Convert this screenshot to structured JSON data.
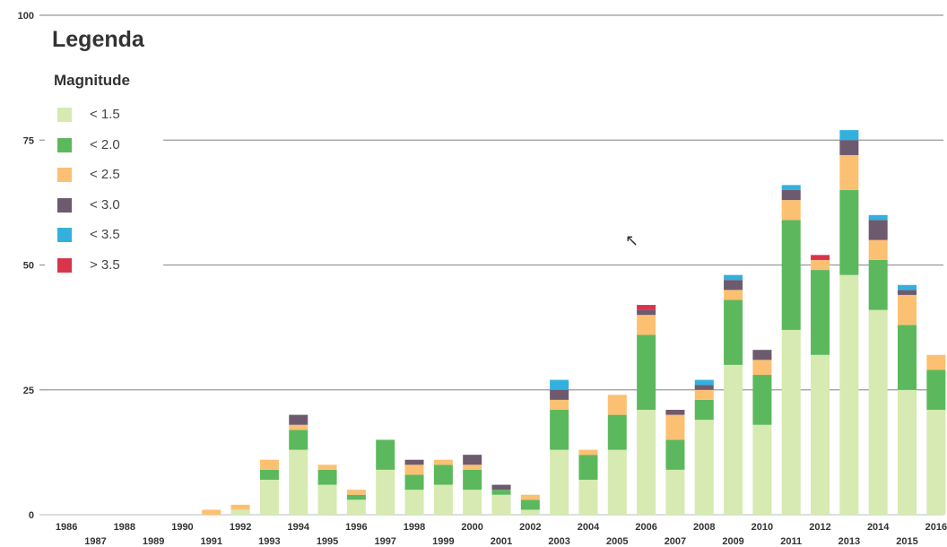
{
  "chart_data": {
    "type": "bar",
    "stacked": true,
    "legend_position": "top-left",
    "ylim": [
      0,
      100
    ],
    "y_ticks": [
      0,
      25,
      50,
      75,
      100
    ],
    "grid": true,
    "legend": {
      "title": "Legenda",
      "subtitle": "Magnitude"
    },
    "categories": [
      "1986",
      "1987",
      "1988",
      "1989",
      "1990",
      "1991",
      "1992",
      "1993",
      "1994",
      "1995",
      "1996",
      "1997",
      "1998",
      "1999",
      "2000",
      "2001",
      "2002",
      "2003",
      "2004",
      "2005",
      "2006",
      "2007",
      "2008",
      "2009",
      "2010",
      "2011",
      "2012",
      "2013",
      "2014",
      "2015",
      "2016"
    ],
    "series": [
      {
        "name": "< 1.5",
        "color": "#d6eab1",
        "values": [
          0,
          0,
          0,
          0,
          0,
          0,
          1,
          7,
          13,
          6,
          3,
          9,
          5,
          6,
          5,
          4,
          1,
          13,
          7,
          13,
          21,
          9,
          19,
          30,
          18,
          37,
          32,
          48,
          41,
          25,
          21
        ]
      },
      {
        "name": "< 2.0",
        "color": "#5cb85c",
        "values": [
          0,
          0,
          0,
          0,
          0,
          0,
          0,
          2,
          4,
          3,
          1,
          6,
          3,
          4,
          4,
          1,
          2,
          8,
          5,
          7,
          15,
          6,
          4,
          13,
          10,
          22,
          17,
          17,
          10,
          13,
          8
        ]
      },
      {
        "name": "< 2.5",
        "color": "#fcc072",
        "values": [
          0,
          0,
          0,
          0,
          0,
          1,
          1,
          2,
          1,
          1,
          1,
          0,
          2,
          1,
          1,
          0,
          1,
          2,
          1,
          4,
          4,
          5,
          2,
          2,
          3,
          4,
          2,
          7,
          4,
          6,
          3
        ]
      },
      {
        "name": "< 3.0",
        "color": "#6e5a6e",
        "values": [
          0,
          0,
          0,
          0,
          0,
          0,
          0,
          0,
          2,
          0,
          0,
          0,
          1,
          0,
          2,
          1,
          0,
          2,
          0,
          0,
          1,
          1,
          1,
          2,
          2,
          2,
          0,
          3,
          4,
          1,
          0
        ]
      },
      {
        "name": "< 3.5",
        "color": "#33b0de",
        "values": [
          0,
          0,
          0,
          0,
          0,
          0,
          0,
          0,
          0,
          0,
          0,
          0,
          0,
          0,
          0,
          0,
          0,
          2,
          0,
          0,
          0,
          0,
          1,
          1,
          0,
          1,
          0,
          2,
          1,
          1,
          0
        ]
      },
      {
        "name": "> 3.5",
        "color": "#d8344c",
        "values": [
          0,
          0,
          0,
          0,
          0,
          0,
          0,
          0,
          0,
          0,
          0,
          0,
          0,
          0,
          0,
          0,
          0,
          0,
          0,
          0,
          1,
          0,
          0,
          0,
          0,
          0,
          1,
          0,
          0,
          0,
          0
        ]
      }
    ]
  }
}
